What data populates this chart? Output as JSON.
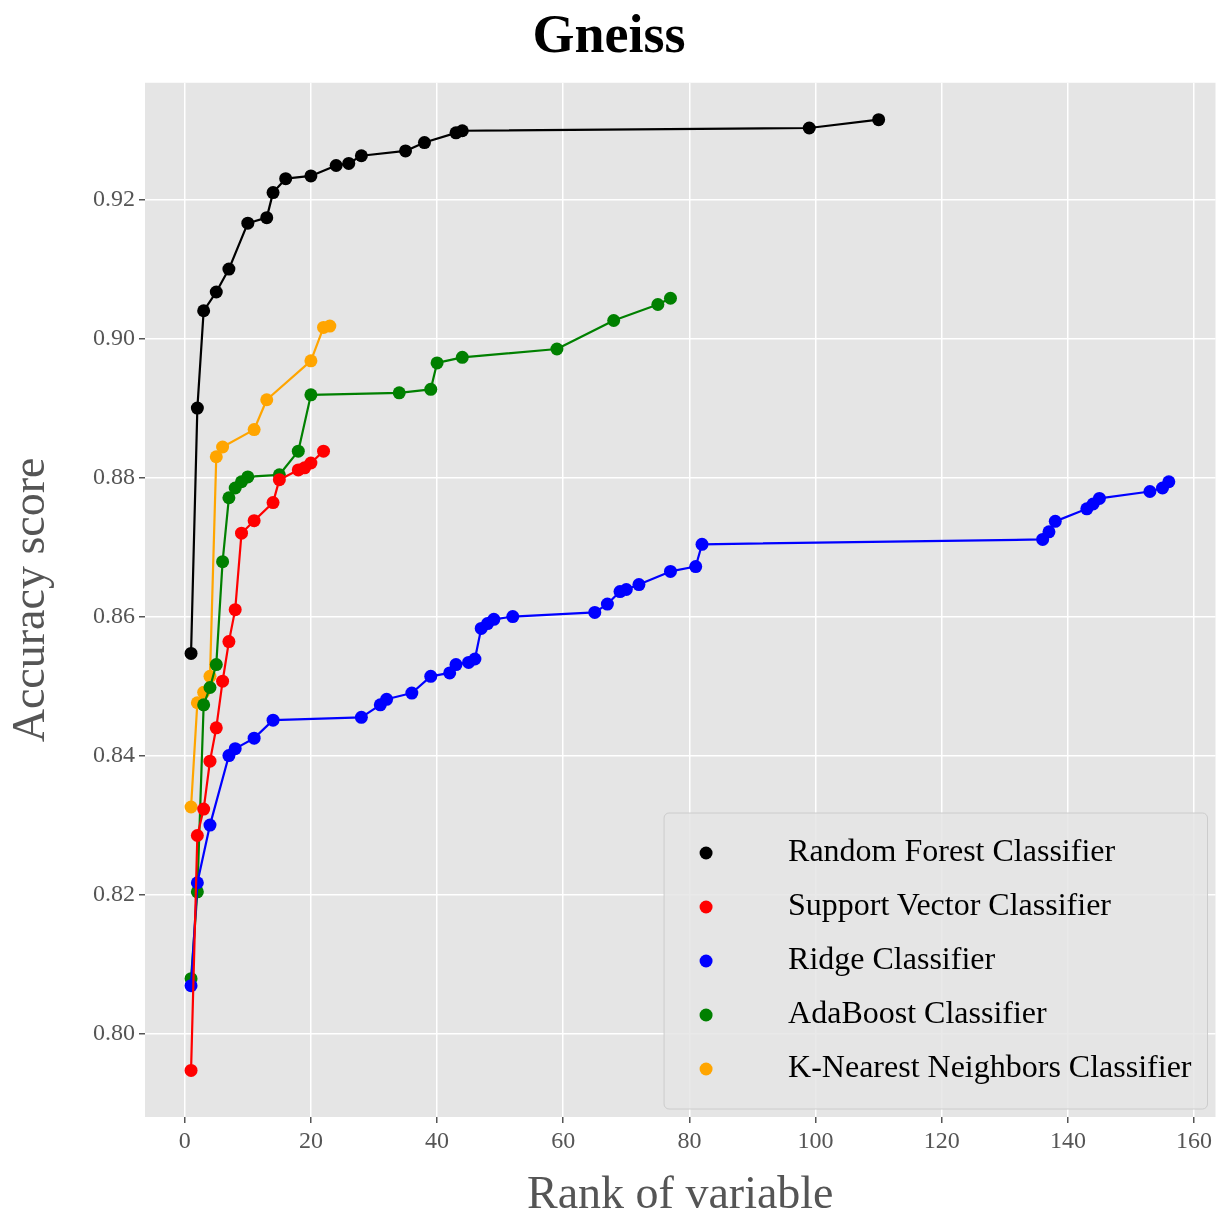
{
  "chart_data": {
    "type": "line",
    "title": "Gneiss",
    "xlabel": "Rank of variable",
    "ylabel": "Accuracy score",
    "xlim": [
      -6.3,
      163.4
    ],
    "ylim": [
      0.788,
      0.9368
    ],
    "xticks": [
      0,
      20,
      40,
      60,
      80,
      100,
      120,
      140,
      160
    ],
    "yticks": [
      {
        "value": 0.8,
        "label": "0.80"
      },
      {
        "value": 0.82,
        "label": "0.82"
      },
      {
        "value": 0.84,
        "label": "0.84"
      },
      {
        "value": 0.86,
        "label": "0.86"
      },
      {
        "value": 0.88,
        "label": "0.88"
      },
      {
        "value": 0.9,
        "label": "0.90"
      },
      {
        "value": 0.92,
        "label": "0.92"
      }
    ],
    "grid": true,
    "legend": "bottom right",
    "marker": "circle",
    "line_style": "solid",
    "series": [
      {
        "name": "Random Forest Classifier",
        "color": "#000000",
        "x": [
          1,
          2,
          3,
          5,
          7,
          10,
          13,
          14,
          16,
          20,
          24,
          26,
          28,
          35,
          38,
          43,
          44,
          99,
          110
        ],
        "values": [
          0.8547,
          0.89,
          0.904,
          0.9067,
          0.91,
          0.9166,
          0.9174,
          0.921,
          0.923,
          0.9234,
          0.9249,
          0.9252,
          0.9263,
          0.927,
          0.9282,
          0.9296,
          0.9299,
          0.9303,
          0.9315
        ]
      },
      {
        "name": "Support Vector Classifier",
        "color": "#ff0000",
        "x": [
          1,
          2,
          3,
          4,
          5,
          6,
          7,
          8,
          9,
          11,
          14,
          15,
          18,
          19,
          20,
          22
        ],
        "values": [
          0.7947,
          0.8285,
          0.8323,
          0.8392,
          0.844,
          0.8507,
          0.8564,
          0.861,
          0.872,
          0.8738,
          0.8764,
          0.8797,
          0.8811,
          0.8814,
          0.8821,
          0.8838
        ]
      },
      {
        "name": "Ridge Classifier",
        "color": "#0000ff",
        "x": [
          1,
          2,
          4,
          7,
          8,
          11,
          14,
          28,
          31,
          32,
          36,
          39,
          42,
          43,
          45,
          46,
          47,
          48,
          49,
          52,
          65,
          67,
          69,
          70,
          72,
          77,
          81,
          82,
          136,
          137,
          138,
          143,
          144,
          145,
          153,
          155,
          156
        ],
        "values": [
          0.8069,
          0.8217,
          0.83,
          0.84,
          0.841,
          0.8425,
          0.8451,
          0.8455,
          0.8473,
          0.8481,
          0.849,
          0.8514,
          0.8519,
          0.8531,
          0.8534,
          0.8539,
          0.8583,
          0.859,
          0.8596,
          0.86,
          0.8606,
          0.8618,
          0.8636,
          0.8639,
          0.8646,
          0.8665,
          0.8672,
          0.8704,
          0.8711,
          0.8722,
          0.8737,
          0.8755,
          0.8762,
          0.877,
          0.878,
          0.8785,
          0.8794
        ]
      },
      {
        "name": "AdaBoost Classifier",
        "color": "#008000",
        "x": [
          1,
          2,
          3,
          4,
          5,
          6,
          7,
          8,
          9,
          10,
          15,
          18,
          20,
          34,
          39,
          40,
          44,
          59,
          68,
          75,
          77
        ],
        "values": [
          0.8079,
          0.8204,
          0.8473,
          0.8498,
          0.8531,
          0.8679,
          0.8771,
          0.8785,
          0.8794,
          0.8801,
          0.8804,
          0.8838,
          0.8919,
          0.8922,
          0.8927,
          0.8965,
          0.8973,
          0.8985,
          0.9026,
          0.9049,
          0.9058
        ]
      },
      {
        "name": "K-Nearest Neighbors Classifier",
        "color": "#ffa500",
        "x": [
          1,
          2,
          3,
          4,
          5,
          6,
          11,
          13,
          20,
          22,
          23
        ],
        "values": [
          0.8326,
          0.8476,
          0.8491,
          0.8514,
          0.883,
          0.8844,
          0.8869,
          0.8912,
          0.8968,
          0.9016,
          0.9018
        ]
      }
    ]
  }
}
